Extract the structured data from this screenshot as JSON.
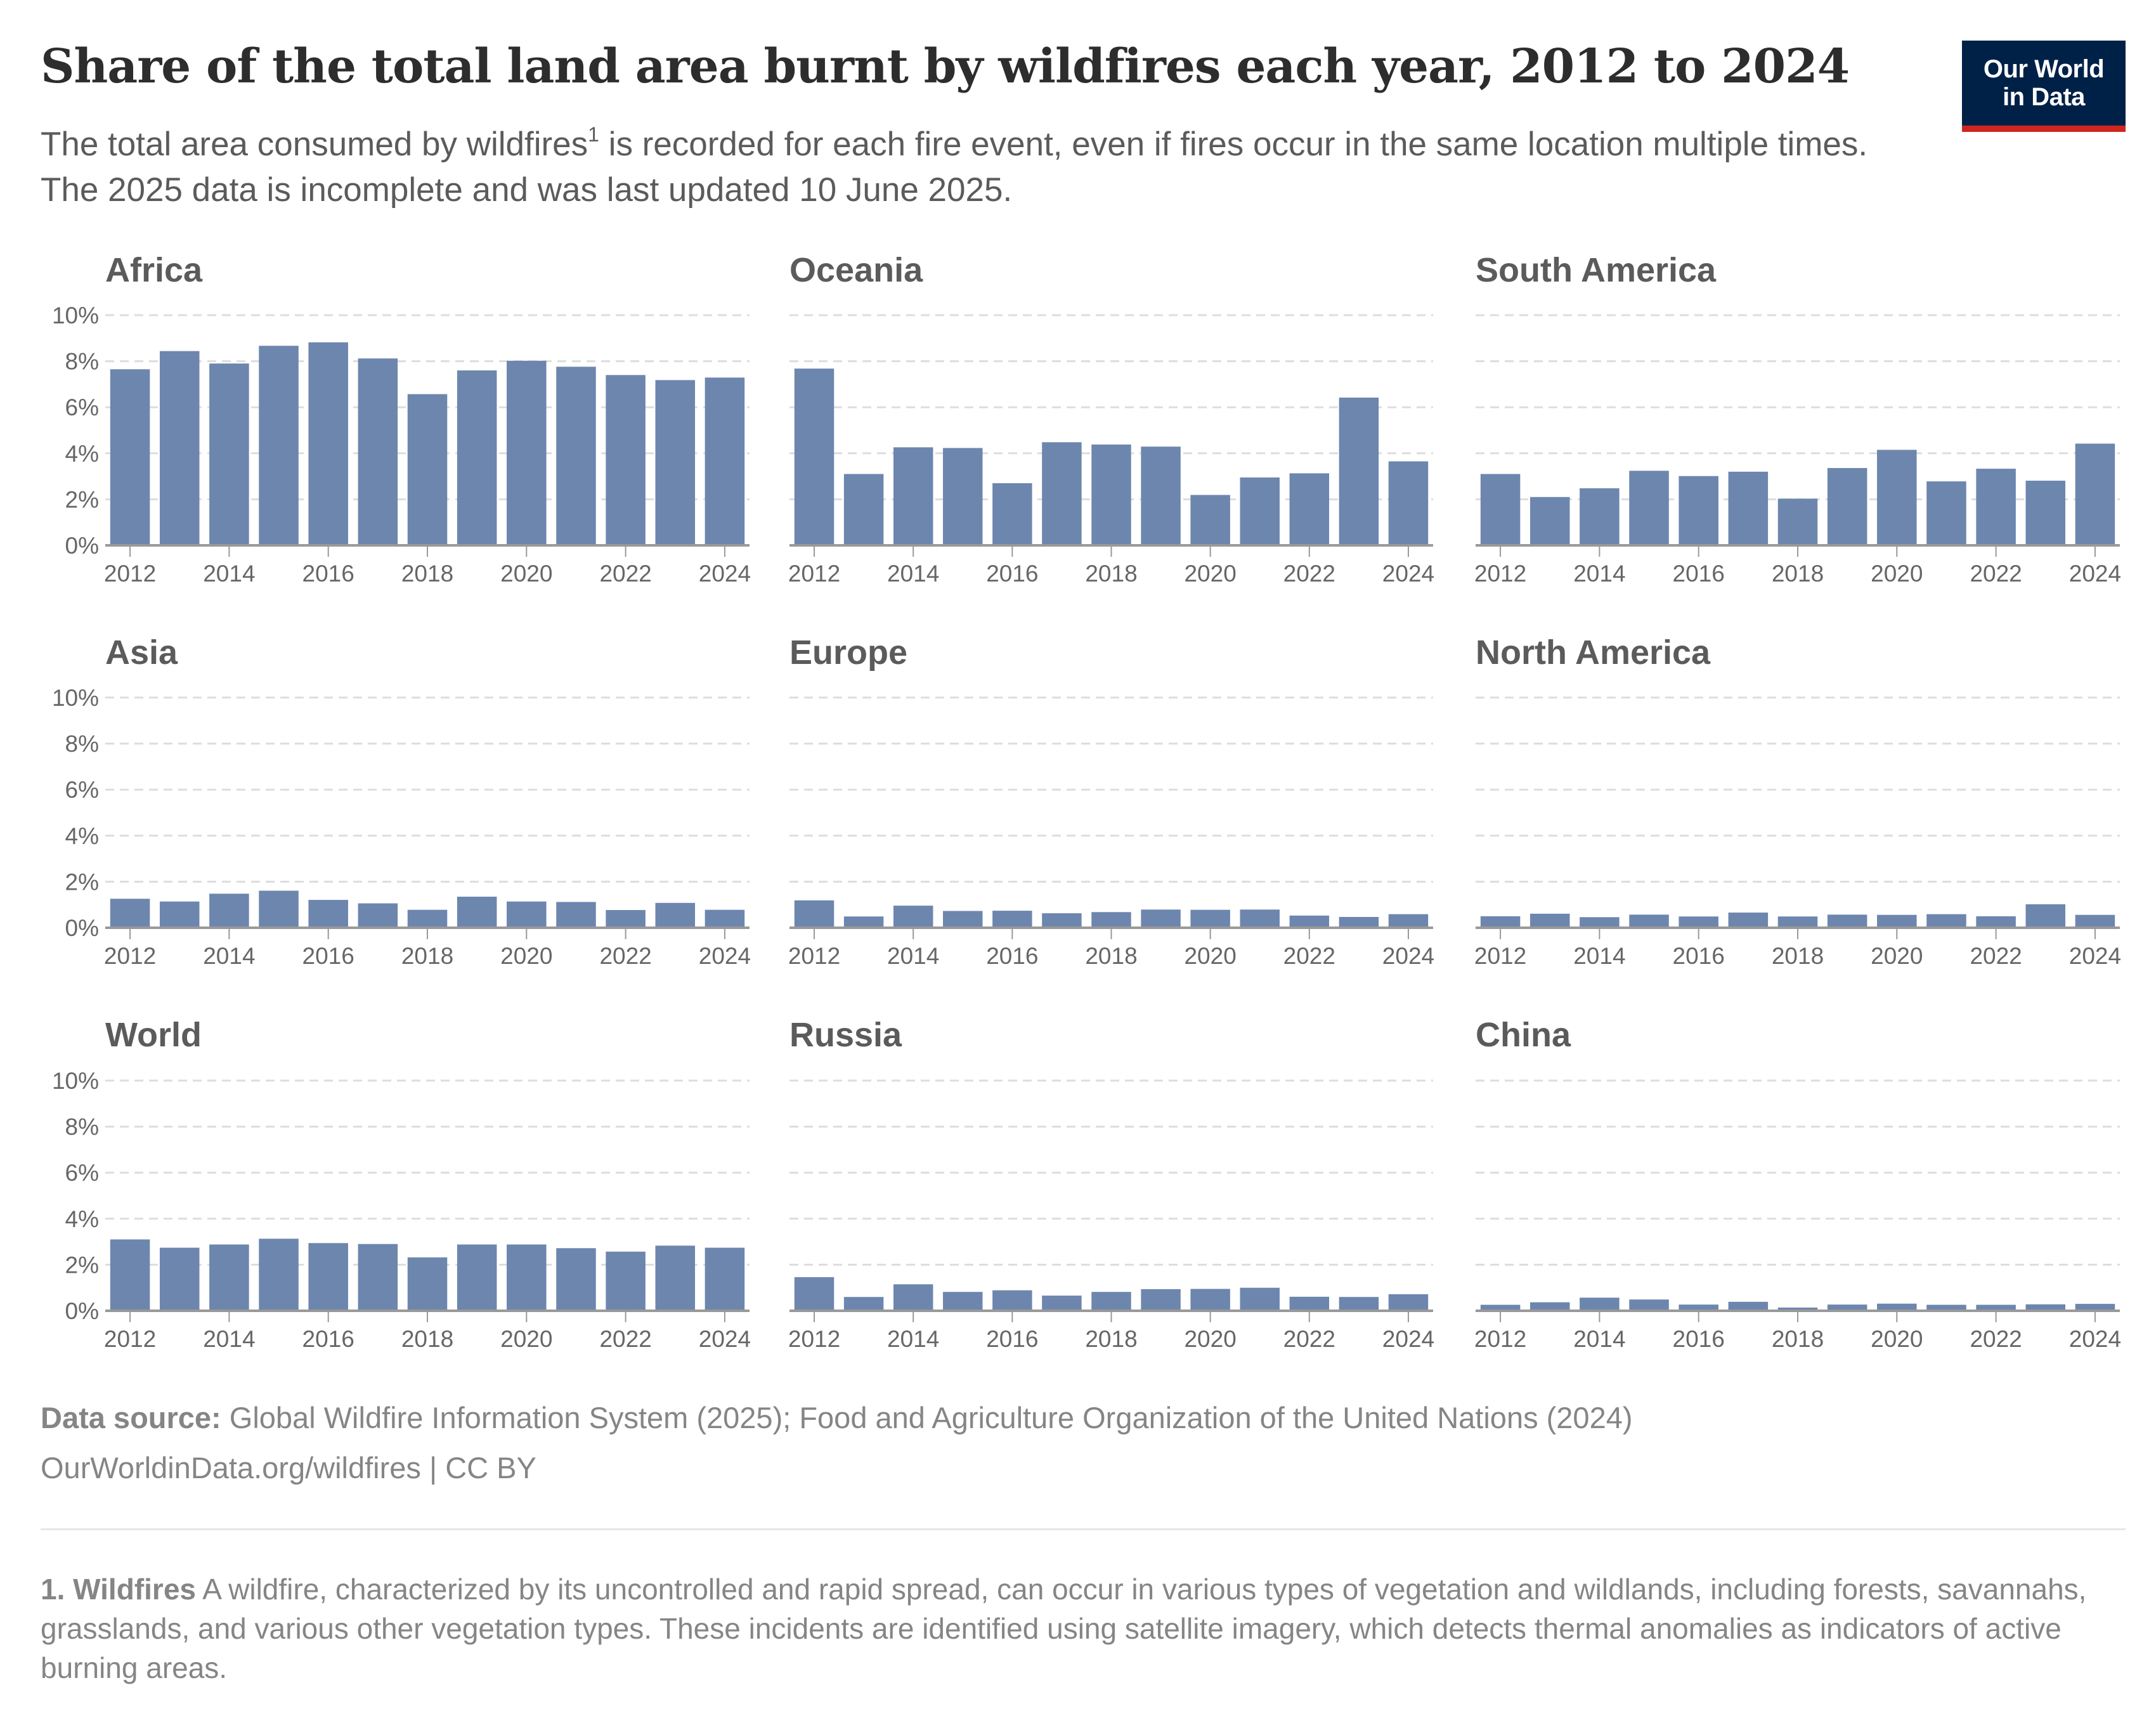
{
  "header": {
    "title": "Share of the total land area burnt by wildfires each year, 2012 to 2024",
    "subtitle_part1": "The total area consumed by wildfires",
    "subtitle_sup": "1",
    "subtitle_part2": " is recorded for each fire event, even if fires occur in the same location multiple times. The 2025 data is incomplete and was last updated 10 June 2025.",
    "logo_line1": "Our World",
    "logo_line2": "in Data"
  },
  "colors": {
    "bar": "#6d86ae",
    "logo_bg": "#002147",
    "logo_accent": "#ce261e",
    "gridline": "#dddddd",
    "axis": "#999999"
  },
  "chart_data": {
    "type": "bar",
    "layout": "small-multiples",
    "title": "Share of the total land area burnt by wildfires each year, 2012 to 2024",
    "xlabel": "",
    "ylabel": "",
    "y_unit": "%",
    "ylim": [
      0,
      10
    ],
    "y_ticks": [
      0,
      2,
      4,
      6,
      8,
      10
    ],
    "y_tick_labels": [
      "0%",
      "2%",
      "4%",
      "6%",
      "8%",
      "10%"
    ],
    "grid": true,
    "categories": [
      "2012",
      "2013",
      "2014",
      "2015",
      "2016",
      "2017",
      "2018",
      "2019",
      "2020",
      "2021",
      "2022",
      "2023",
      "2024"
    ],
    "x_tick_labels": [
      "2012",
      "2014",
      "2016",
      "2018",
      "2020",
      "2022",
      "2024"
    ],
    "series": [
      {
        "name": "Africa",
        "values": [
          7.65,
          8.44,
          7.9,
          8.67,
          8.82,
          8.12,
          6.57,
          7.6,
          8.02,
          7.76,
          7.4,
          7.18,
          7.29
        ]
      },
      {
        "name": "Oceania",
        "values": [
          7.68,
          3.1,
          4.26,
          4.23,
          2.7,
          4.48,
          4.38,
          4.29,
          2.19,
          2.95,
          3.13,
          6.42,
          3.65
        ]
      },
      {
        "name": "South America",
        "values": [
          3.1,
          2.1,
          2.48,
          3.24,
          3.01,
          3.2,
          2.03,
          3.36,
          4.15,
          2.78,
          3.33,
          2.81,
          4.42
        ]
      },
      {
        "name": "Asia",
        "values": [
          1.26,
          1.14,
          1.48,
          1.61,
          1.21,
          1.06,
          0.78,
          1.35,
          1.14,
          1.12,
          0.77,
          1.08,
          0.78
        ]
      },
      {
        "name": "Europe",
        "values": [
          1.19,
          0.49,
          0.96,
          0.73,
          0.74,
          0.63,
          0.68,
          0.79,
          0.78,
          0.79,
          0.53,
          0.47,
          0.59
        ]
      },
      {
        "name": "North America",
        "values": [
          0.5,
          0.61,
          0.46,
          0.57,
          0.49,
          0.66,
          0.49,
          0.57,
          0.56,
          0.59,
          0.5,
          1.02,
          0.56
        ]
      },
      {
        "name": "World",
        "values": [
          3.1,
          2.74,
          2.88,
          3.13,
          2.94,
          2.9,
          2.32,
          2.88,
          2.88,
          2.72,
          2.57,
          2.83,
          2.74
        ]
      },
      {
        "name": "Russia",
        "values": [
          1.46,
          0.6,
          1.15,
          0.82,
          0.89,
          0.66,
          0.82,
          0.94,
          0.95,
          1.0,
          0.61,
          0.6,
          0.72
        ]
      },
      {
        "name": "China",
        "values": [
          0.26,
          0.37,
          0.57,
          0.49,
          0.27,
          0.39,
          0.14,
          0.27,
          0.31,
          0.26,
          0.26,
          0.28,
          0.3
        ]
      }
    ]
  },
  "footer": {
    "source_label": "Data source:",
    "source_text": " Global Wildfire Information System (2025); Food and Agriculture Organization of the United Nations (2024)",
    "url_text": "OurWorldinData.org/wildfires | CC BY",
    "footnote_label": "1. Wildfires",
    "footnote_text": " A wildfire, characterized by its uncontrolled and rapid spread, can occur in various types of vegetation and wildlands, including forests, savannahs, grasslands, and various other vegetation types. These incidents are identified using satellite imagery, which detects thermal anomalies as indicators of active burning areas."
  }
}
